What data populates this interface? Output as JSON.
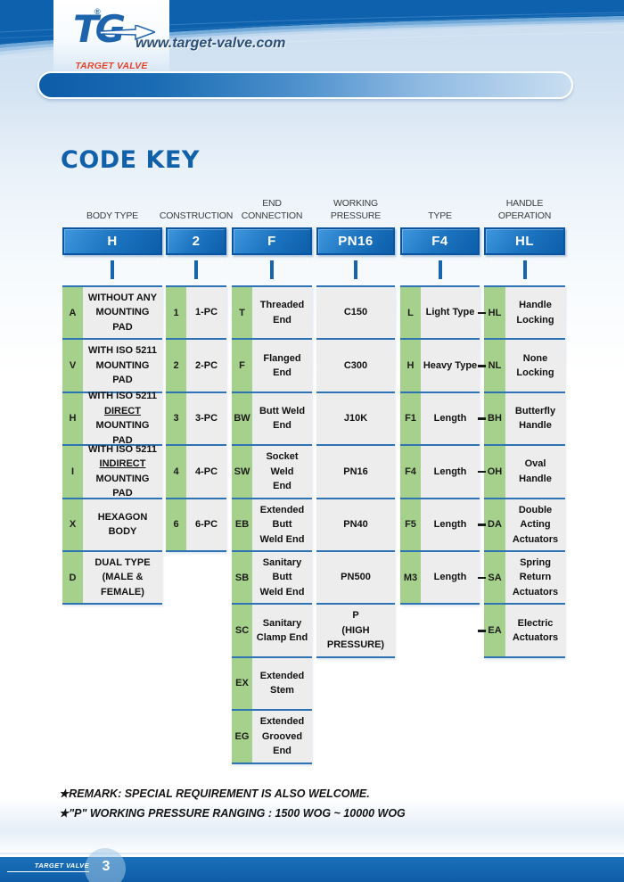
{
  "header": {
    "url": "www.target-valve.com",
    "logo": {
      "mark": "TG",
      "registered": "®",
      "brand": "TARGET VALVE"
    }
  },
  "title": "CODE KEY",
  "columns": [
    {
      "label": "BODY TYPE",
      "code": "H",
      "rows": [
        {
          "code": "A",
          "lines": [
            "WITHOUT ANY",
            "MOUNTING PAD"
          ]
        },
        {
          "code": "V",
          "lines": [
            "WITH ISO 5211",
            "MOUNTING PAD"
          ]
        },
        {
          "code": "H",
          "lines": [
            "WITH ISO 5211",
            {
              "t": "DIRECT",
              "u": true
            },
            "MOUNTING PAD"
          ]
        },
        {
          "code": "I",
          "lines": [
            "WITH ISO 5211",
            {
              "t": "INDIRECT",
              "u": true
            },
            "MOUNTING PAD"
          ]
        },
        {
          "code": "X",
          "lines": [
            "HEXAGON BODY"
          ]
        },
        {
          "code": "D",
          "lines": [
            "DUAL TYPE",
            "(MALE & FEMALE)"
          ]
        }
      ]
    },
    {
      "label": "CONSTRUCTION",
      "code": "2",
      "rows": [
        {
          "code": "1",
          "lines": [
            "1-PC"
          ]
        },
        {
          "code": "2",
          "lines": [
            "2-PC"
          ]
        },
        {
          "code": "3",
          "lines": [
            "3-PC"
          ]
        },
        {
          "code": "4",
          "lines": [
            "4-PC"
          ]
        },
        {
          "code": "6",
          "lines": [
            "6-PC"
          ]
        }
      ]
    },
    {
      "label": "END\nCONNECTION",
      "code": "F",
      "rows": [
        {
          "code": "T",
          "lines": [
            "Threaded End"
          ]
        },
        {
          "code": "F",
          "lines": [
            "Flanged End"
          ]
        },
        {
          "code": "BW",
          "lines": [
            "Butt Weld End"
          ]
        },
        {
          "code": "SW",
          "lines": [
            "Socket Weld",
            "End"
          ]
        },
        {
          "code": "EB",
          "lines": [
            "Extended Butt",
            "Weld End"
          ]
        },
        {
          "code": "SB",
          "lines": [
            "Sanitary Butt",
            "Weld End"
          ]
        },
        {
          "code": "SC",
          "lines": [
            "Sanitary",
            "Clamp End"
          ]
        },
        {
          "code": "EX",
          "lines": [
            "Extended",
            "Stem"
          ]
        },
        {
          "code": "EG",
          "lines": [
            "Extended",
            "Grooved End"
          ]
        }
      ]
    },
    {
      "label": "WORKING\nPRESSURE",
      "code": "PN16",
      "rows": [
        {
          "lines": [
            "C150"
          ]
        },
        {
          "lines": [
            "C300"
          ]
        },
        {
          "lines": [
            "J10K"
          ]
        },
        {
          "lines": [
            "PN16"
          ]
        },
        {
          "lines": [
            "PN40"
          ]
        },
        {
          "lines": [
            "PN500"
          ]
        },
        {
          "lines": [
            "P",
            "(HIGH PRESSURE)"
          ]
        }
      ]
    },
    {
      "label": "TYPE",
      "code": "F4",
      "rows": [
        {
          "code": "L",
          "lines": [
            "Light Type"
          ]
        },
        {
          "code": "H",
          "lines": [
            "Heavy Type"
          ]
        },
        {
          "code": "F1",
          "lines": [
            "Length"
          ]
        },
        {
          "code": "F4",
          "lines": [
            "Length"
          ]
        },
        {
          "code": "F5",
          "lines": [
            "Length"
          ]
        },
        {
          "code": "M3",
          "lines": [
            "Length"
          ]
        }
      ]
    },
    {
      "label": "HANDLE\nOPERATION",
      "code": "HL",
      "connector_dash": true,
      "rows": [
        {
          "code": "HL",
          "lines": [
            "Handle",
            "Locking"
          ]
        },
        {
          "code": "NL",
          "lines": [
            "None",
            "Locking"
          ]
        },
        {
          "code": "BH",
          "lines": [
            "Butterfly",
            "Handle"
          ]
        },
        {
          "code": "OH",
          "lines": [
            "Oval",
            "Handle"
          ]
        },
        {
          "code": "DA",
          "lines": [
            "Double Acting",
            "Actuators"
          ]
        },
        {
          "code": "SA",
          "lines": [
            "Spring Return",
            "Actuators"
          ]
        },
        {
          "code": "EA",
          "lines": [
            "Electric",
            "Actuators"
          ]
        }
      ]
    }
  ],
  "remarks": [
    "★REMARK: SPECIAL REQUIREMENT IS ALSO WELCOME.",
    "★\"P\" WORKING PRESSURE RANGING : 1500 WOG ~ 10000 WOG"
  ],
  "footer": {
    "brand": "TARGET VALVE",
    "page": "3"
  },
  "colors": {
    "banner_blue": "#0e61ac",
    "box_blue": "#1c74c0",
    "code_green": "#a6d18c",
    "cell_gray": "#ededed",
    "row_line": "#2e74b5",
    "title_blue": "#1161aa",
    "brand_red": "#e2402a"
  }
}
